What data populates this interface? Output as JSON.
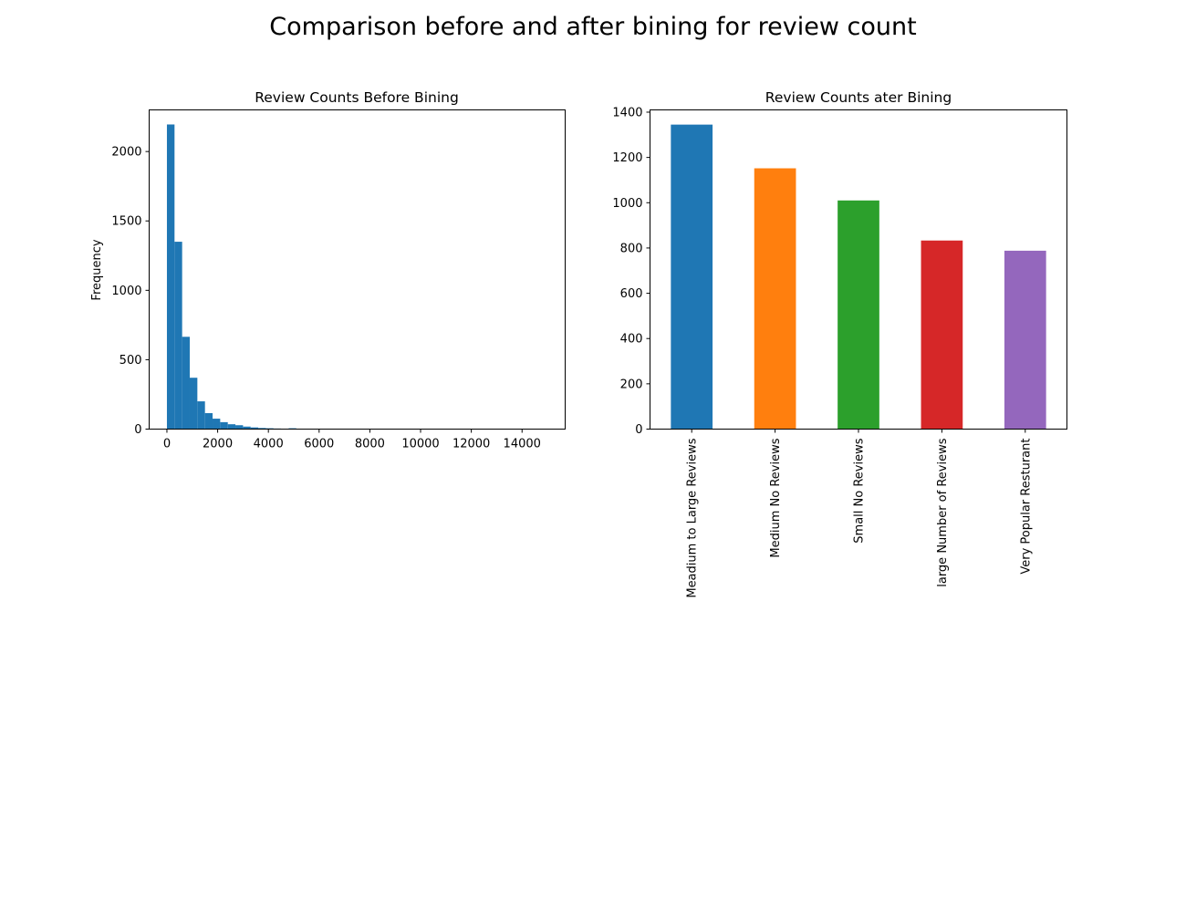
{
  "figure": {
    "title": "Comparison before and after bining for review count"
  },
  "chart_data": [
    {
      "type": "bar",
      "subtype": "histogram",
      "title": "Review Counts Before Bining",
      "xlabel": "",
      "ylabel": "Frequency",
      "xlim": [
        -700,
        15700
      ],
      "ylim": [
        0,
        2300
      ],
      "xticks": [
        0,
        2000,
        4000,
        6000,
        8000,
        10000,
        12000,
        14000
      ],
      "yticks": [
        0,
        500,
        1000,
        1500,
        2000
      ],
      "bin_width": 300,
      "bin_start": 0,
      "values": [
        2195,
        1350,
        665,
        370,
        200,
        115,
        75,
        50,
        35,
        28,
        18,
        12,
        8,
        6,
        4,
        3,
        6,
        2,
        1,
        1
      ],
      "color": "#1f77b4",
      "grid": false
    },
    {
      "type": "bar",
      "title": "Review Counts ater Bining",
      "xlabel": "",
      "ylabel": "",
      "ylim": [
        0,
        1410
      ],
      "yticks": [
        0,
        200,
        400,
        600,
        800,
        1000,
        1200,
        1400
      ],
      "categories": [
        "Meadium to Large Reviews",
        "Medium No Reviews",
        "Small No Reviews",
        "large Number of Reviews",
        "Very Popular Resturant"
      ],
      "values": [
        1345,
        1152,
        1010,
        833,
        788
      ],
      "colors": [
        "#1f77b4",
        "#ff7f0e",
        "#2ca02c",
        "#d62728",
        "#9467bd"
      ],
      "grid": false
    }
  ]
}
